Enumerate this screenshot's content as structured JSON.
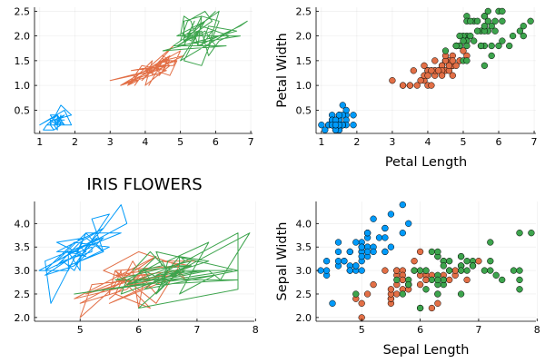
{
  "colors": {
    "setosa": "#009af9",
    "versicolor": "#e26f46",
    "virginica": "#3da44d"
  },
  "chart_data": [
    {
      "type": "line",
      "title": "",
      "xlabel": "",
      "ylabel": "",
      "xlim": [
        1,
        7
      ],
      "ylim": [
        0.1,
        2.5
      ],
      "xticks": [
        "1",
        "2",
        "3",
        "4",
        "5",
        "6",
        "7"
      ],
      "yticks": [
        "0.5",
        "1.0",
        "1.5",
        "2.0",
        "2.5"
      ],
      "grid": true,
      "series": [
        {
          "color_key": "setosa",
          "x": [
            1.4,
            1.4,
            1.3,
            1.5,
            1.4,
            1.7,
            1.4,
            1.5,
            1.4,
            1.5,
            1.5,
            1.6,
            1.4,
            1.1,
            1.2,
            1.5,
            1.3,
            1.4,
            1.7,
            1.5,
            1.7,
            1.5,
            1.0,
            1.7,
            1.9,
            1.6,
            1.6,
            1.5,
            1.4,
            1.6,
            1.6,
            1.5,
            1.5,
            1.4,
            1.5,
            1.2,
            1.3,
            1.4,
            1.3,
            1.5,
            1.3,
            1.3,
            1.3,
            1.6,
            1.9,
            1.4,
            1.6,
            1.4,
            1.5,
            1.4
          ],
          "y": [
            0.2,
            0.2,
            0.2,
            0.2,
            0.2,
            0.4,
            0.3,
            0.2,
            0.2,
            0.1,
            0.2,
            0.2,
            0.1,
            0.1,
            0.2,
            0.4,
            0.4,
            0.3,
            0.3,
            0.3,
            0.2,
            0.4,
            0.2,
            0.5,
            0.2,
            0.2,
            0.4,
            0.2,
            0.2,
            0.2,
            0.2,
            0.4,
            0.1,
            0.2,
            0.2,
            0.2,
            0.2,
            0.1,
            0.2,
            0.2,
            0.3,
            0.3,
            0.2,
            0.6,
            0.4,
            0.3,
            0.2,
            0.2,
            0.2,
            0.2
          ]
        },
        {
          "color_key": "versicolor",
          "x": [
            4.7,
            4.5,
            4.9,
            4.0,
            4.6,
            4.5,
            4.7,
            3.3,
            4.6,
            3.9,
            3.5,
            4.2,
            4.0,
            4.7,
            3.6,
            4.4,
            4.5,
            4.1,
            4.5,
            3.9,
            4.8,
            4.0,
            4.9,
            4.7,
            4.3,
            4.4,
            4.8,
            5.0,
            4.5,
            3.5,
            3.8,
            3.7,
            3.9,
            5.1,
            4.5,
            4.5,
            4.7,
            4.4,
            4.1,
            4.0,
            4.4,
            4.6,
            4.0,
            3.3,
            4.2,
            4.2,
            4.2,
            4.3,
            3.0,
            4.1
          ],
          "y": [
            1.4,
            1.5,
            1.5,
            1.3,
            1.5,
            1.3,
            1.6,
            1.0,
            1.3,
            1.4,
            1.0,
            1.5,
            1.0,
            1.4,
            1.3,
            1.4,
            1.5,
            1.0,
            1.5,
            1.1,
            1.8,
            1.3,
            1.5,
            1.2,
            1.3,
            1.4,
            1.4,
            1.7,
            1.5,
            1.0,
            1.1,
            1.0,
            1.2,
            1.6,
            1.5,
            1.6,
            1.5,
            1.3,
            1.3,
            1.3,
            1.2,
            1.4,
            1.2,
            1.0,
            1.3,
            1.2,
            1.3,
            1.3,
            1.1,
            1.3
          ]
        },
        {
          "color_key": "virginica",
          "x": [
            6.0,
            5.1,
            5.9,
            5.6,
            5.8,
            6.6,
            4.5,
            6.3,
            5.8,
            6.1,
            5.1,
            5.3,
            5.5,
            5.0,
            5.1,
            5.3,
            5.5,
            6.7,
            6.9,
            5.0,
            5.7,
            4.9,
            6.7,
            4.9,
            5.7,
            6.0,
            4.8,
            4.9,
            5.6,
            5.8,
            6.1,
            6.4,
            5.6,
            5.1,
            5.6,
            6.1,
            5.6,
            5.5,
            4.8,
            5.4,
            5.6,
            5.1,
            5.1,
            5.9,
            5.7,
            5.2,
            5.0,
            5.2,
            5.4,
            5.1
          ],
          "y": [
            2.5,
            1.9,
            2.1,
            1.8,
            2.2,
            2.1,
            1.7,
            1.8,
            1.8,
            2.5,
            2.0,
            1.9,
            2.1,
            2.0,
            2.4,
            2.3,
            1.8,
            2.2,
            2.3,
            1.5,
            2.3,
            2.0,
            2.0,
            1.8,
            2.1,
            1.8,
            1.8,
            1.8,
            2.1,
            1.6,
            1.9,
            2.0,
            2.2,
            1.5,
            1.4,
            2.3,
            2.4,
            1.8,
            1.8,
            2.1,
            2.4,
            2.3,
            1.9,
            2.3,
            2.5,
            2.3,
            1.9,
            2.0,
            2.3,
            1.8
          ]
        }
      ]
    },
    {
      "type": "scatter",
      "title": "",
      "xlabel": "Petal Length",
      "ylabel": "Petal Width",
      "xlim": [
        1,
        7
      ],
      "ylim": [
        0.1,
        2.5
      ],
      "xticks": [
        "1",
        "2",
        "3",
        "4",
        "5",
        "6",
        "7"
      ],
      "yticks": [
        "0.5",
        "1.0",
        "1.5",
        "2.0",
        "2.5"
      ],
      "grid": true,
      "series": "same as panel 1"
    },
    {
      "type": "line",
      "title": "IRIS FLOWERS",
      "xlabel": "",
      "ylabel": "",
      "xlim": [
        4.3,
        7.9
      ],
      "ylim": [
        2.0,
        4.4
      ],
      "xticks": [
        "5",
        "6",
        "7",
        "8"
      ],
      "yticks": [
        "2.0",
        "2.5",
        "3.0",
        "3.5",
        "4.0"
      ],
      "grid": true,
      "series": [
        {
          "color_key": "setosa",
          "x": [
            5.1,
            4.9,
            4.7,
            4.6,
            5.0,
            5.4,
            4.6,
            5.0,
            4.4,
            4.9,
            5.4,
            4.8,
            4.8,
            4.3,
            5.8,
            5.7,
            5.4,
            5.1,
            5.7,
            5.1,
            5.4,
            5.1,
            4.6,
            5.1,
            4.8,
            5.0,
            5.0,
            5.2,
            5.2,
            4.7,
            4.8,
            5.4,
            5.2,
            5.5,
            4.9,
            5.0,
            5.5,
            4.9,
            4.4,
            5.1,
            5.0,
            4.5,
            4.4,
            5.0,
            5.1,
            4.8,
            5.1,
            4.6,
            5.3,
            5.0
          ],
          "y": [
            3.5,
            3.0,
            3.2,
            3.1,
            3.6,
            3.9,
            3.4,
            3.4,
            2.9,
            3.1,
            3.7,
            3.4,
            3.0,
            3.0,
            4.0,
            4.4,
            3.9,
            3.5,
            3.8,
            3.8,
            3.4,
            3.7,
            3.6,
            3.3,
            3.4,
            3.0,
            3.4,
            3.5,
            3.4,
            3.2,
            3.1,
            3.4,
            4.1,
            4.2,
            3.1,
            3.2,
            3.5,
            3.6,
            3.0,
            3.4,
            3.5,
            2.3,
            3.2,
            3.5,
            3.8,
            3.0,
            3.8,
            3.2,
            3.7,
            3.3
          ]
        },
        {
          "color_key": "versicolor",
          "x": [
            7.0,
            6.4,
            6.9,
            5.5,
            6.5,
            5.7,
            6.3,
            4.9,
            6.6,
            5.2,
            5.0,
            5.9,
            6.0,
            6.1,
            5.6,
            6.7,
            5.6,
            5.8,
            6.2,
            5.6,
            5.9,
            6.1,
            6.3,
            6.1,
            6.4,
            6.6,
            6.8,
            6.7,
            6.0,
            5.7,
            5.5,
            5.5,
            5.8,
            6.0,
            5.4,
            6.0,
            6.7,
            6.3,
            5.6,
            5.5,
            5.5,
            6.1,
            5.8,
            5.0,
            5.6,
            5.7,
            5.7,
            6.2,
            5.1,
            5.7
          ],
          "y": [
            3.2,
            3.2,
            3.1,
            2.3,
            2.8,
            2.8,
            3.3,
            2.4,
            2.9,
            2.7,
            2.0,
            3.0,
            2.2,
            2.9,
            2.9,
            3.1,
            3.0,
            2.7,
            2.2,
            2.5,
            3.2,
            2.8,
            2.5,
            2.8,
            2.9,
            3.0,
            2.8,
            3.0,
            2.9,
            2.6,
            2.4,
            2.4,
            2.7,
            2.7,
            3.0,
            3.4,
            3.1,
            2.3,
            3.0,
            2.5,
            2.6,
            3.0,
            2.6,
            2.3,
            2.7,
            3.0,
            2.9,
            2.9,
            2.5,
            2.8
          ]
        },
        {
          "color_key": "virginica",
          "x": [
            6.3,
            5.8,
            7.1,
            6.3,
            6.5,
            7.6,
            4.9,
            7.3,
            6.7,
            7.2,
            6.5,
            6.4,
            6.8,
            5.7,
            5.8,
            6.4,
            6.5,
            7.7,
            7.7,
            6.0,
            6.9,
            5.6,
            7.7,
            6.3,
            6.7,
            7.2,
            6.2,
            6.1,
            6.4,
            7.2,
            7.4,
            7.9,
            6.4,
            6.3,
            6.1,
            7.7,
            6.3,
            6.4,
            6.0,
            6.9,
            6.7,
            6.9,
            5.8,
            6.8,
            6.7,
            6.7,
            6.3,
            6.5,
            6.2,
            5.9
          ],
          "y": [
            3.3,
            2.7,
            3.0,
            2.9,
            3.0,
            3.0,
            2.5,
            2.9,
            2.5,
            3.6,
            3.2,
            2.7,
            3.0,
            2.5,
            2.8,
            3.2,
            3.0,
            3.8,
            2.6,
            2.2,
            3.2,
            2.8,
            2.8,
            2.7,
            3.3,
            3.2,
            2.8,
            3.0,
            2.8,
            3.0,
            2.8,
            3.8,
            2.8,
            2.8,
            2.6,
            3.0,
            3.4,
            3.1,
            3.0,
            3.1,
            3.1,
            3.1,
            2.7,
            3.2,
            3.3,
            3.0,
            2.5,
            3.0,
            3.4,
            3.0
          ]
        }
      ]
    },
    {
      "type": "scatter",
      "title": "",
      "xlabel": "Sepal Length",
      "ylabel": "Sepal Width",
      "xlim": [
        4.3,
        7.9
      ],
      "ylim": [
        2.0,
        4.4
      ],
      "xticks": [
        "5",
        "6",
        "7",
        "8"
      ],
      "yticks": [
        "2.0",
        "2.5",
        "3.0",
        "3.5",
        "4.0"
      ],
      "grid": true,
      "series": "same as panel 3"
    }
  ]
}
